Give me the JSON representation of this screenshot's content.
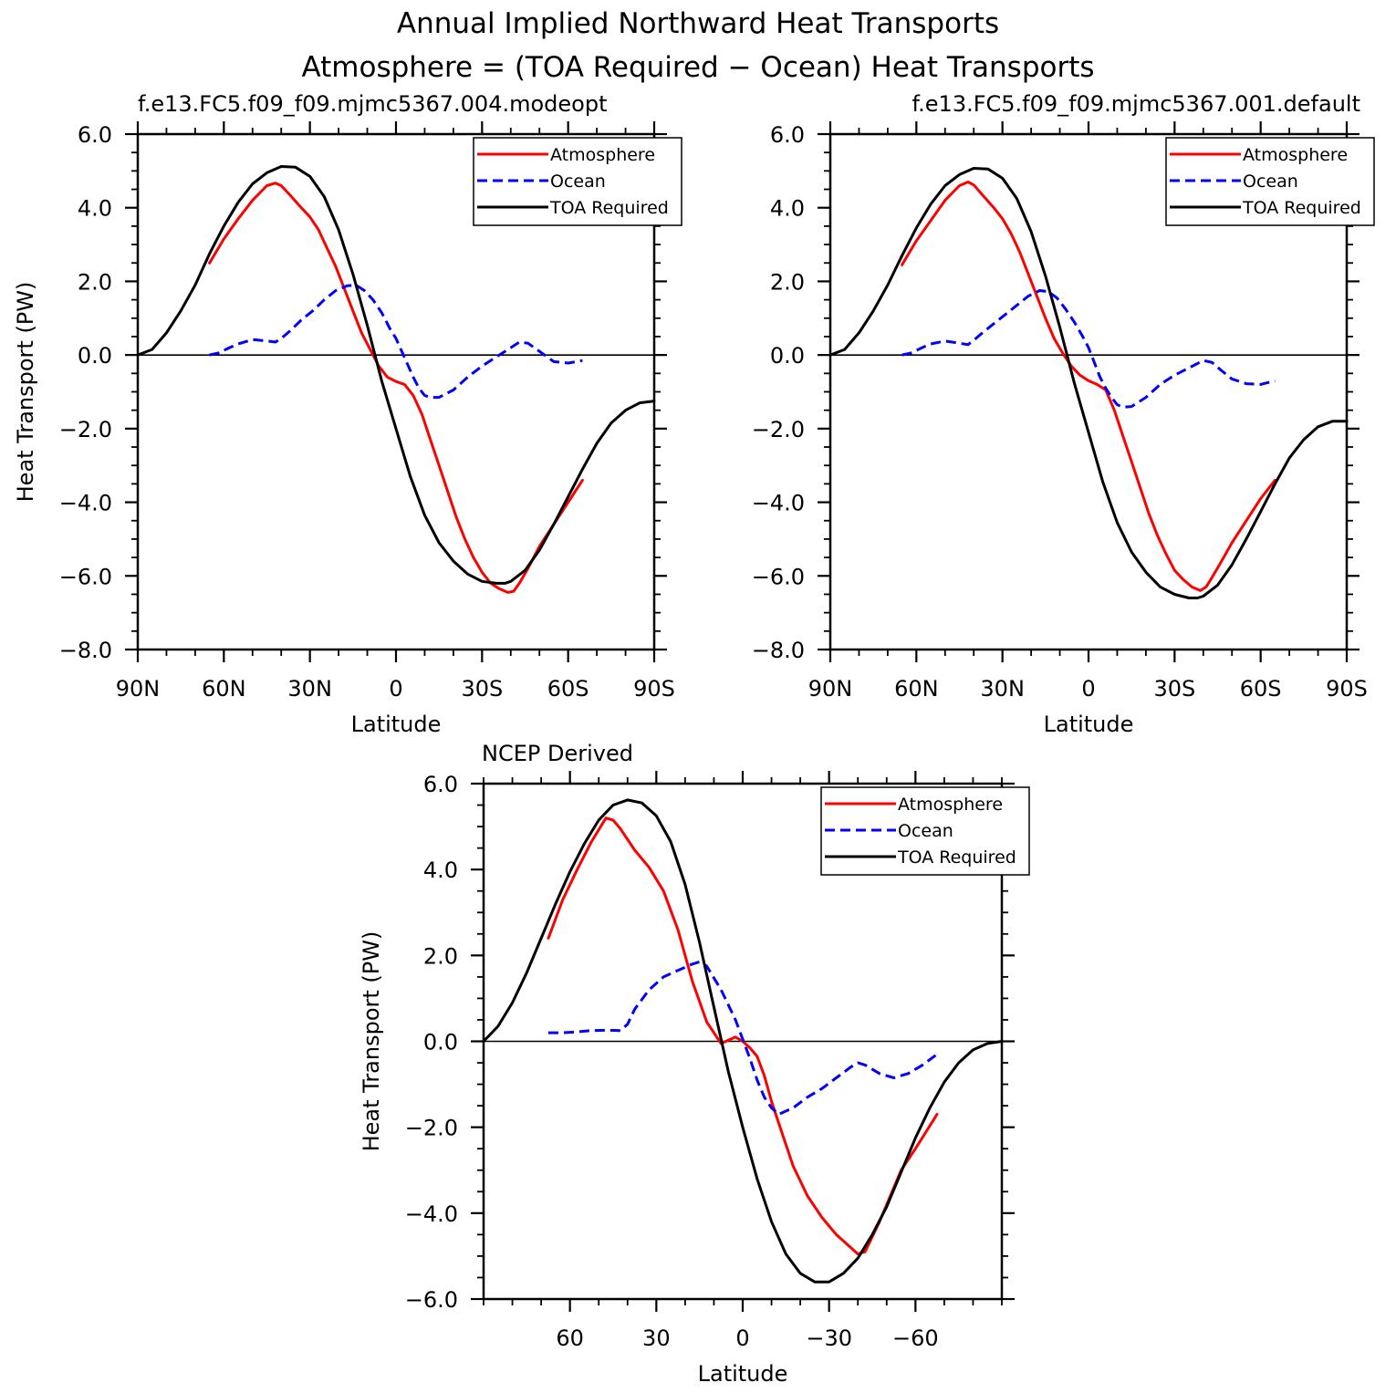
{
  "figure": {
    "title_line1": "Annual Implied Northward Heat Transports",
    "title_line2": "Atmosphere = (TOA Required − Ocean) Heat Transports"
  },
  "chart_data": [
    {
      "type": "line",
      "title": "f.e13.FC5.f09_f09.mjmc5367.004.modeopt",
      "xlabel": "Latitude",
      "ylabel": "Heat Transport (PW)",
      "xlim": [
        90,
        -90
      ],
      "ylim": [
        -8,
        6
      ],
      "xticks": [
        90,
        60,
        30,
        0,
        -30,
        -60,
        -90
      ],
      "xtick_labels": [
        "90N",
        "60N",
        "30N",
        "0",
        "30S",
        "60S",
        "90S"
      ],
      "yticks": [
        -8,
        -6,
        -4,
        -2,
        0,
        2,
        4,
        6
      ],
      "ytick_labels": [
        "−8.0",
        "−6.0",
        "−4.0",
        "−2.0",
        "0.0",
        "2.0",
        "4.0",
        "6.0"
      ],
      "grid": false,
      "legend_position": "top-right",
      "series": [
        {
          "name": "Atmosphere",
          "color": "#ff0000",
          "dash": "solid",
          "x": [
            65,
            60,
            55,
            50,
            45,
            42,
            40,
            37,
            33,
            30,
            27,
            24,
            21,
            18,
            15,
            12,
            9,
            6,
            3,
            0,
            -3,
            -6,
            -9,
            -12,
            -15,
            -18,
            -21,
            -24,
            -27,
            -30,
            -33,
            -36,
            -39,
            -41,
            -43,
            -46,
            -50,
            -55,
            -60,
            -65
          ],
          "y": [
            2.5,
            3.15,
            3.7,
            4.2,
            4.6,
            4.67,
            4.6,
            4.35,
            4.0,
            3.75,
            3.4,
            2.9,
            2.4,
            1.8,
            1.2,
            0.6,
            0.15,
            -0.3,
            -0.6,
            -0.72,
            -0.8,
            -1.1,
            -1.6,
            -2.3,
            -3.0,
            -3.7,
            -4.4,
            -5.0,
            -5.5,
            -5.9,
            -6.2,
            -6.35,
            -6.45,
            -6.42,
            -6.2,
            -5.8,
            -5.2,
            -4.6,
            -4.0,
            -3.4
          ]
        },
        {
          "name": "Ocean",
          "color": "#0000ff",
          "dash": "dashed",
          "x": [
            65,
            62,
            58,
            55,
            50,
            45,
            42,
            40,
            37,
            33,
            29,
            25,
            21,
            17,
            14,
            11,
            8,
            5,
            2,
            0,
            -2,
            -4,
            -6,
            -8,
            -10,
            -12,
            -15,
            -20,
            -25,
            -30,
            -35,
            -40,
            -43,
            -46,
            -50,
            -55,
            -60,
            -65
          ],
          "y": [
            0.0,
            0.05,
            0.2,
            0.3,
            0.42,
            0.38,
            0.35,
            0.45,
            0.65,
            0.95,
            1.2,
            1.5,
            1.75,
            1.88,
            1.9,
            1.75,
            1.5,
            1.15,
            0.7,
            0.45,
            0.1,
            -0.25,
            -0.6,
            -0.9,
            -1.1,
            -1.15,
            -1.15,
            -0.95,
            -0.6,
            -0.3,
            -0.05,
            0.2,
            0.35,
            0.32,
            0.1,
            -0.18,
            -0.22,
            -0.15
          ]
        },
        {
          "name": "TOA Required",
          "color": "#000000",
          "dash": "solid",
          "x": [
            90,
            85,
            80,
            75,
            70,
            65,
            60,
            55,
            50,
            45,
            40,
            35,
            30,
            25,
            20,
            15,
            10,
            5,
            0,
            -5,
            -10,
            -15,
            -20,
            -25,
            -30,
            -35,
            -38,
            -40,
            -45,
            -50,
            -55,
            -60,
            -65,
            -70,
            -75,
            -80,
            -85,
            -90
          ],
          "y": [
            0.0,
            0.15,
            0.6,
            1.2,
            1.9,
            2.75,
            3.5,
            4.15,
            4.65,
            4.95,
            5.12,
            5.1,
            4.85,
            4.3,
            3.4,
            2.2,
            0.8,
            -0.7,
            -2.0,
            -3.3,
            -4.35,
            -5.1,
            -5.6,
            -5.95,
            -6.15,
            -6.2,
            -6.2,
            -6.15,
            -5.85,
            -5.3,
            -4.6,
            -3.85,
            -3.1,
            -2.4,
            -1.85,
            -1.5,
            -1.3,
            -1.25
          ]
        }
      ]
    },
    {
      "type": "line",
      "title": "f.e13.FC5.f09_f09.mjmc5367.001.default",
      "xlabel": "Latitude",
      "ylabel": "",
      "xlim": [
        90,
        -90
      ],
      "ylim": [
        -8,
        6
      ],
      "xticks": [
        90,
        60,
        30,
        0,
        -30,
        -60,
        -90
      ],
      "xtick_labels": [
        "90N",
        "60N",
        "30N",
        "0",
        "30S",
        "60S",
        "90S"
      ],
      "yticks": [
        -8,
        -6,
        -4,
        -2,
        0,
        2,
        4,
        6
      ],
      "ytick_labels": [
        "−8.0",
        "−6.0",
        "−4.0",
        "−2.0",
        "0.0",
        "2.0",
        "4.0",
        "6.0"
      ],
      "grid": false,
      "legend_position": "top-right",
      "series": [
        {
          "name": "Atmosphere",
          "color": "#ff0000",
          "dash": "solid",
          "x": [
            65,
            60,
            55,
            50,
            45,
            42,
            40,
            37,
            33,
            30,
            27,
            24,
            21,
            18,
            15,
            12,
            9,
            6,
            3,
            0,
            -3,
            -6,
            -9,
            -12,
            -15,
            -18,
            -21,
            -24,
            -27,
            -30,
            -33,
            -36,
            -39,
            -41,
            -43,
            -46,
            -50,
            -55,
            -60,
            -65
          ],
          "y": [
            2.45,
            3.1,
            3.65,
            4.2,
            4.6,
            4.7,
            4.62,
            4.35,
            4.0,
            3.7,
            3.3,
            2.8,
            2.2,
            1.6,
            1.0,
            0.45,
            0.05,
            -0.3,
            -0.55,
            -0.7,
            -0.8,
            -0.95,
            -1.5,
            -2.2,
            -2.9,
            -3.6,
            -4.3,
            -4.9,
            -5.4,
            -5.85,
            -6.1,
            -6.3,
            -6.4,
            -6.3,
            -6.05,
            -5.65,
            -5.1,
            -4.5,
            -3.9,
            -3.4
          ]
        },
        {
          "name": "Ocean",
          "color": "#0000ff",
          "dash": "dashed",
          "x": [
            65,
            62,
            58,
            55,
            50,
            45,
            42,
            40,
            37,
            33,
            29,
            25,
            21,
            17,
            14,
            11,
            8,
            5,
            2,
            0,
            -2,
            -4,
            -6,
            -8,
            -10,
            -12,
            -15,
            -20,
            -25,
            -30,
            -35,
            -40,
            -43,
            -46,
            -50,
            -55,
            -60,
            -65
          ],
          "y": [
            0.0,
            0.05,
            0.2,
            0.3,
            0.38,
            0.32,
            0.28,
            0.4,
            0.6,
            0.85,
            1.1,
            1.35,
            1.6,
            1.75,
            1.72,
            1.55,
            1.25,
            0.9,
            0.5,
            0.2,
            -0.2,
            -0.6,
            -0.9,
            -1.15,
            -1.35,
            -1.42,
            -1.4,
            -1.15,
            -0.8,
            -0.55,
            -0.35,
            -0.15,
            -0.2,
            -0.4,
            -0.65,
            -0.78,
            -0.8,
            -0.7
          ]
        },
        {
          "name": "TOA Required",
          "color": "#000000",
          "dash": "solid",
          "x": [
            90,
            85,
            80,
            75,
            70,
            65,
            60,
            55,
            50,
            45,
            40,
            35,
            30,
            25,
            20,
            15,
            10,
            5,
            0,
            -5,
            -10,
            -15,
            -20,
            -25,
            -30,
            -35,
            -38,
            -40,
            -45,
            -50,
            -55,
            -60,
            -65,
            -70,
            -75,
            -80,
            -85,
            -90
          ],
          "y": [
            0.0,
            0.15,
            0.6,
            1.2,
            1.9,
            2.7,
            3.45,
            4.1,
            4.6,
            4.9,
            5.07,
            5.05,
            4.8,
            4.25,
            3.35,
            2.15,
            0.75,
            -0.75,
            -2.1,
            -3.45,
            -4.55,
            -5.35,
            -5.9,
            -6.3,
            -6.5,
            -6.6,
            -6.6,
            -6.55,
            -6.25,
            -5.7,
            -5.0,
            -4.25,
            -3.5,
            -2.8,
            -2.3,
            -1.95,
            -1.8,
            -1.8
          ]
        }
      ]
    },
    {
      "type": "line",
      "title": "NCEP Derived",
      "xlabel": "Latitude",
      "ylabel": "Heat Transport (PW)",
      "xlim": [
        90,
        -90
      ],
      "ylim": [
        -6,
        6
      ],
      "xticks": [
        60,
        30,
        0,
        -30,
        -60
      ],
      "xtick_labels": [
        "60",
        "30",
        "0",
        "−30",
        "−60"
      ],
      "yticks": [
        -6,
        -4,
        -2,
        0,
        2,
        4,
        6
      ],
      "ytick_labels": [
        "−6.0",
        "−4.0",
        "−2.0",
        "0.0",
        "2.0",
        "4.0",
        "6.0"
      ],
      "grid": false,
      "legend_position": "top-right",
      "series": [
        {
          "name": "Atmosphere",
          "color": "#ff0000",
          "dash": "solid",
          "x": [
            67.5,
            62.5,
            57.5,
            52.5,
            47.5,
            45,
            42.5,
            37.5,
            32.5,
            27.5,
            22.5,
            17.5,
            12.5,
            7.5,
            2.5,
            0,
            -2.5,
            -5,
            -7.5,
            -10,
            -12.5,
            -17.5,
            -22.5,
            -27.5,
            -32.5,
            -37.5,
            -40,
            -42.5,
            -47.5,
            -55,
            -60,
            -67.5
          ],
          "y": [
            2.4,
            3.3,
            4.0,
            4.65,
            5.2,
            5.15,
            4.95,
            4.45,
            4.05,
            3.5,
            2.6,
            1.4,
            0.45,
            -0.05,
            0.1,
            0.0,
            -0.15,
            -0.35,
            -0.8,
            -1.4,
            -1.9,
            -2.9,
            -3.6,
            -4.1,
            -4.5,
            -4.8,
            -4.95,
            -4.9,
            -4.2,
            -3.0,
            -2.5,
            -1.7
          ]
        },
        {
          "name": "Ocean",
          "color": "#0000ff",
          "dash": "dashed",
          "x": [
            67.5,
            62.5,
            57.5,
            52.5,
            47.5,
            42.5,
            40,
            37.5,
            32.5,
            27.5,
            22.5,
            17.5,
            15,
            12.5,
            7.5,
            2.5,
            0,
            -2.5,
            -5,
            -7.5,
            -10,
            -12.5,
            -17.5,
            -22.5,
            -27.5,
            -32.5,
            -37.5,
            -40,
            -42.5,
            -47.5,
            -52.5,
            -57.5,
            -62.5,
            -67.5
          ],
          "y": [
            0.2,
            0.2,
            0.22,
            0.25,
            0.26,
            0.25,
            0.4,
            0.75,
            1.2,
            1.5,
            1.65,
            1.8,
            1.85,
            1.75,
            1.2,
            0.5,
            0.05,
            -0.4,
            -0.9,
            -1.3,
            -1.55,
            -1.7,
            -1.55,
            -1.3,
            -1.1,
            -0.85,
            -0.6,
            -0.5,
            -0.55,
            -0.75,
            -0.85,
            -0.75,
            -0.55,
            -0.3
          ]
        },
        {
          "name": "TOA Required",
          "color": "#000000",
          "dash": "solid",
          "x": [
            90,
            85,
            80,
            75,
            70,
            65,
            60,
            55,
            50,
            45,
            40,
            35,
            30,
            25,
            20,
            15,
            10,
            5,
            0,
            -5,
            -10,
            -15,
            -20,
            -25,
            -30,
            -35,
            -40,
            -45,
            -50,
            -55,
            -60,
            -65,
            -70,
            -75,
            -80,
            -85,
            -90
          ],
          "y": [
            0.0,
            0.35,
            0.9,
            1.6,
            2.4,
            3.2,
            3.95,
            4.6,
            5.15,
            5.5,
            5.62,
            5.55,
            5.25,
            4.65,
            3.65,
            2.3,
            0.8,
            -0.7,
            -2.0,
            -3.2,
            -4.2,
            -4.95,
            -5.4,
            -5.6,
            -5.6,
            -5.4,
            -5.05,
            -4.5,
            -3.85,
            -3.05,
            -2.25,
            -1.55,
            -0.95,
            -0.5,
            -0.2,
            -0.05,
            0.0
          ]
        }
      ]
    }
  ]
}
